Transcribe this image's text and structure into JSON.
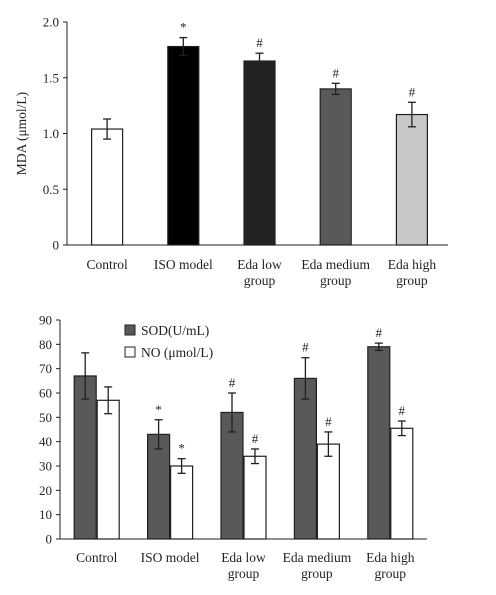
{
  "chart_data": [
    {
      "type": "bar",
      "title": "",
      "xlabel": "",
      "ylabel": "MDA (μmol/L)",
      "ylim": [
        0,
        2.0
      ],
      "yticks": [
        "0",
        "0.5",
        "1.0",
        "1.5",
        "2.0"
      ],
      "grid": false,
      "categories": [
        [
          "Control"
        ],
        [
          "ISO model"
        ],
        [
          "Eda low",
          "group"
        ],
        [
          "Eda medium",
          "group"
        ],
        [
          "Eda high",
          "group"
        ]
      ],
      "values": [
        1.04,
        1.78,
        1.65,
        1.4,
        1.17
      ],
      "errors": [
        0.09,
        0.08,
        0.07,
        0.05,
        0.11
      ],
      "significance": [
        "",
        "*",
        "#",
        "#",
        "#"
      ],
      "colors": [
        "#ffffff",
        "#000000",
        "#222222",
        "#595959",
        "#c8c8c8"
      ]
    },
    {
      "type": "bar",
      "title": "",
      "xlabel": "",
      "ylabel": "",
      "ylim": [
        0,
        90
      ],
      "yticks": [
        "0",
        "10",
        "20",
        "30",
        "40",
        "50",
        "60",
        "70",
        "80",
        "90"
      ],
      "grid": false,
      "legend_position": "top-left",
      "categories": [
        [
          "Control"
        ],
        [
          "ISO model"
        ],
        [
          "Eda low",
          "group"
        ],
        [
          "Eda medium",
          "group"
        ],
        [
          "Eda high",
          "group"
        ]
      ],
      "series": [
        {
          "name": "SOD(U/mL)",
          "color": "#595959",
          "values": [
            67,
            43,
            52,
            66,
            79
          ],
          "errors": [
            9.5,
            6,
            8,
            8.5,
            1.5
          ],
          "significance": [
            "",
            "*",
            "#",
            "#",
            "#"
          ]
        },
        {
          "name": "NO (μmol/L)",
          "color": "#ffffff",
          "values": [
            57,
            30,
            34,
            39,
            45.5
          ],
          "errors": [
            5.5,
            3,
            3,
            5,
            3
          ],
          "significance": [
            "",
            "*",
            "#",
            "#",
            "#"
          ]
        }
      ]
    }
  ]
}
